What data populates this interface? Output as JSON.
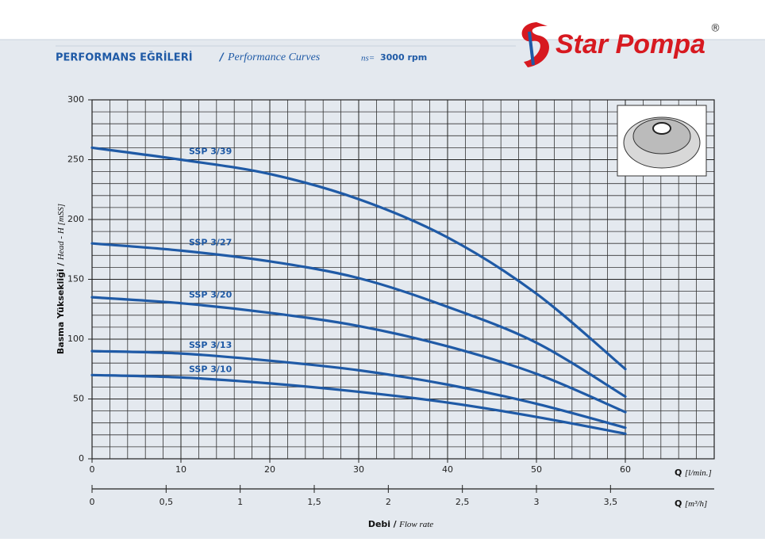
{
  "chart_data": {
    "type": "line",
    "title": "PERFORMANS EĞRİLERİ",
    "title_slash": "/",
    "subtitle": "Performance Curves",
    "speed_label": "ns=",
    "speed_value": "3000 rpm",
    "logo": {
      "text": "Star Pompa",
      "mark": "®"
    },
    "y_label": {
      "tr": "Basma Yüksekliği",
      "slash": "/",
      "en": "Head - H [mSS]"
    },
    "x_label": {
      "q": "Q",
      "unit": "[l/min.]"
    },
    "x2_label": {
      "q": "Q",
      "unit": "[m³/h]"
    },
    "flow_label": {
      "tr": "Debi",
      "slash": "/",
      "en": "Flow rate"
    },
    "x": [
      0,
      10,
      20,
      30,
      40,
      50,
      60
    ],
    "xlim": [
      0,
      70
    ],
    "xticks": [
      0,
      10,
      20,
      30,
      40,
      50,
      60
    ],
    "ylim": [
      0,
      300
    ],
    "yticks": [
      0,
      50,
      100,
      150,
      200,
      250,
      300
    ],
    "x2lim": [
      0,
      4.2
    ],
    "x2ticks": [
      0,
      {
        "value": 0.5,
        "label": "0,5"
      },
      1,
      {
        "value": 1.5,
        "label": "1,5"
      },
      2,
      {
        "value": 2.5,
        "label": "2,5"
      },
      3,
      {
        "value": 3.5,
        "label": "3,5"
      }
    ],
    "grid": true,
    "series": [
      {
        "name": "SSP 3/39",
        "color": "#1f5aa6",
        "values": [
          260,
          250,
          238,
          217,
          185,
          138,
          75
        ]
      },
      {
        "name": "SSP 3/27",
        "color": "#1f5aa6",
        "values": [
          180,
          174,
          165,
          151,
          127,
          97,
          52
        ]
      },
      {
        "name": "SSP 3/20",
        "color": "#1f5aa6",
        "values": [
          135,
          130,
          122,
          111,
          94,
          71,
          39
        ]
      },
      {
        "name": "SSP 3/13",
        "color": "#1f5aa6",
        "values": [
          90,
          88,
          82,
          74,
          62,
          46,
          26
        ]
      },
      {
        "name": "SSP 3/10",
        "color": "#1f5aa6",
        "values": [
          70,
          68,
          63,
          56,
          47,
          35,
          21
        ]
      }
    ]
  }
}
